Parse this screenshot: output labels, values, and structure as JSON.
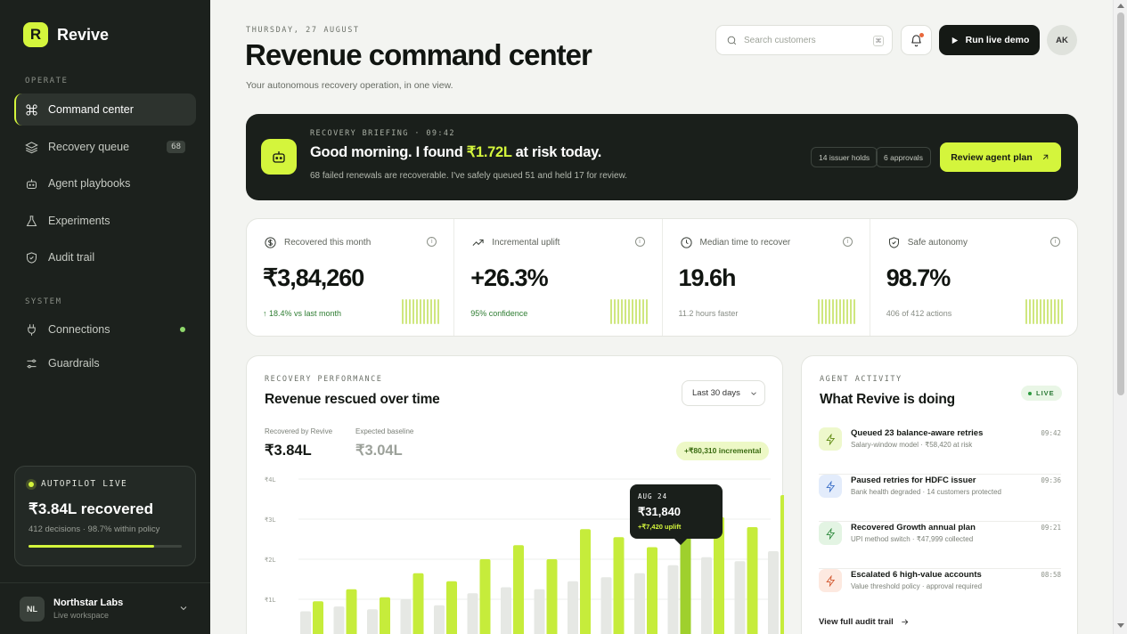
{
  "app": {
    "name": "Revive",
    "logo_letter": "R"
  },
  "sidebar": {
    "operate_label": "OPERATE",
    "system_label": "SYSTEM",
    "items": [
      {
        "label": "Command center",
        "icon": "command-icon",
        "active": true
      },
      {
        "label": "Recovery queue",
        "icon": "layers-icon",
        "badge": "68"
      },
      {
        "label": "Agent playbooks",
        "icon": "bot-icon"
      },
      {
        "label": "Experiments",
        "icon": "flask-icon"
      },
      {
        "label": "Audit trail",
        "icon": "shield-icon"
      }
    ],
    "system_items": [
      {
        "label": "Connections",
        "icon": "plug-icon",
        "status": "connected"
      },
      {
        "label": "Guardrails",
        "icon": "sliders-icon"
      }
    ],
    "autopilot": {
      "label": "AUTOPILOT LIVE",
      "value": "₹3.84L recovered",
      "sub": "412 decisions · 98.7% within policy",
      "progress": 0.82
    },
    "workspace": {
      "initials": "NL",
      "name": "Northstar Labs",
      "sub": "Live workspace"
    }
  },
  "header": {
    "date": "THURSDAY, 27 AUGUST",
    "title": "Revenue command center",
    "subtitle": "Your autonomous recovery operation, in one view.",
    "search_placeholder": "Search customers",
    "search_kbd": "⌘",
    "demo_button": "Run live demo",
    "avatar": "AK"
  },
  "briefing": {
    "label": "RECOVERY BRIEFING · 09:42",
    "headline_pre": "Good morning. I found ",
    "headline_amount": "₹1.72L",
    "headline_post": " at risk today.",
    "sub": "68 failed renewals are recoverable. I've safely queued 51 and held 17 for review.",
    "pill_1": "14 issuer holds",
    "pill_2": "6 approvals",
    "button": "Review agent plan"
  },
  "kpis": [
    {
      "label": "Recovered this month",
      "icon": "dollar-icon",
      "value": "₹3,84,260",
      "foot": "↑ 18.4% vs last month",
      "foot_green": true
    },
    {
      "label": "Incremental uplift",
      "icon": "trend-icon",
      "value": "+26.3%",
      "foot": "95% confidence",
      "foot_green": true
    },
    {
      "label": "Median time to recover",
      "icon": "clock-icon",
      "value": "19.6h",
      "foot": "11.2 hours faster",
      "foot_green": false
    },
    {
      "label": "Safe autonomy",
      "icon": "shield-check-icon",
      "value": "98.7%",
      "foot": "406 of 412 actions",
      "foot_green": false
    }
  ],
  "performance": {
    "label": "RECOVERY PERFORMANCE",
    "title": "Revenue rescued over time",
    "range": "Last 30 days",
    "recovered_label": "Recovered by Revive",
    "recovered_value": "₹3.84L",
    "baseline_label": "Expected baseline",
    "baseline_value": "₹3.04L",
    "incremental": "+₹80,310 incremental",
    "tooltip": {
      "date": "AUG 24",
      "value": "₹31,840",
      "sub": "+₹7,420 uplift"
    }
  },
  "chart_data": {
    "type": "bar",
    "y_ticks": [
      "₹4L",
      "₹3L",
      "₹2L",
      "₹1L"
    ],
    "ylim": [
      0,
      4
    ],
    "series": [
      {
        "values": [
          0.7,
          0.82,
          0.75,
          1.0,
          0.85,
          1.15,
          1.3,
          1.25,
          1.45,
          1.55,
          1.65,
          1.85,
          2.05,
          1.95,
          2.2
        ]
      },
      {
        "values": [
          0.95,
          1.25,
          1.05,
          1.65,
          1.45,
          2.0,
          2.35,
          2.0,
          2.75,
          2.55,
          2.3,
          2.9,
          3.05,
          2.8,
          3.6
        ]
      }
    ],
    "colors": {
      "baseline": "#e6e8e4",
      "recovered": "#c6ec3b",
      "recovered_dark": "#9fd02d"
    },
    "highlight_index": 11
  },
  "activity": {
    "label": "AGENT ACTIVITY",
    "title": "What Revive is doing",
    "live": "LIVE",
    "items": [
      {
        "title": "Queued 23 balance-aware retries",
        "sub": "Salary-window model · ₹58,420 at risk",
        "time": "09:42",
        "tone": "lime"
      },
      {
        "title": "Paused retries for HDFC issuer",
        "sub": "Bank health degraded · 14 customers protected",
        "time": "09:36",
        "tone": "blue"
      },
      {
        "title": "Recovered Growth annual plan",
        "sub": "UPI method switch · ₹47,999 collected",
        "time": "09:21",
        "tone": "green"
      },
      {
        "title": "Escalated 6 high-value accounts",
        "sub": "Value threshold policy · approval required",
        "time": "08:58",
        "tone": "orange"
      }
    ],
    "link": "View full audit trail"
  }
}
